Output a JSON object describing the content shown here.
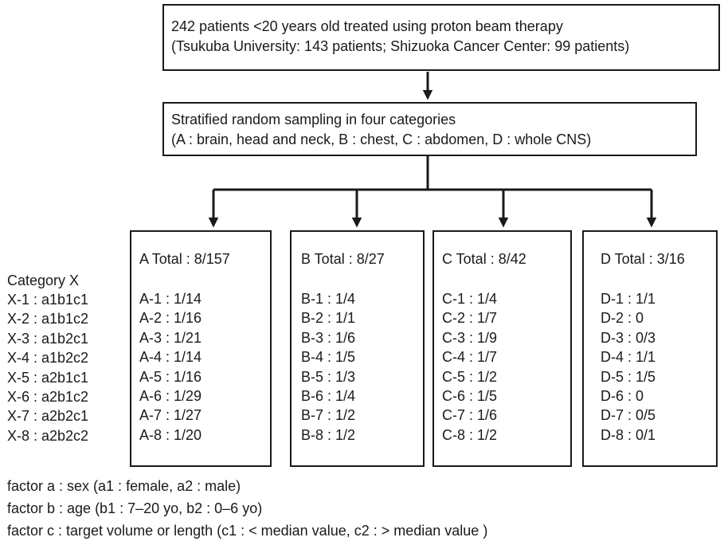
{
  "top_box": {
    "line1": "242 patients <20 years old treated using proton beam therapy",
    "line2": "(Tsukuba University: 143 patients; Shizuoka Cancer Center: 99 patients)"
  },
  "mid_box": {
    "line1": "Stratified random sampling in four categories",
    "line2": "(A : brain, head and neck, B : chest, C : abdomen, D : whole CNS)"
  },
  "legend": {
    "title": "Category X",
    "rows": [
      "X-1 : a1b1c1",
      "X-2 : a1b1c2",
      "X-3 : a1b2c1",
      "X-4 : a1b2c2",
      "X-5 : a2b1c1",
      "X-6 : a2b1c2",
      "X-7 : a2b2c1",
      "X-8 : a2b2c2"
    ]
  },
  "categories": [
    {
      "title": "A Total : 8/157",
      "rows": [
        "A-1 : 1/14",
        "A-2 : 1/16",
        "A-3 : 1/21",
        "A-4 : 1/14",
        "A-5 : 1/16",
        "A-6 : 1/29",
        "A-7 : 1/27",
        "A-8 : 1/20"
      ]
    },
    {
      "title": "B Total : 8/27",
      "rows": [
        "B-1 : 1/4",
        "B-2 : 1/1",
        "B-3 : 1/6",
        "B-4 : 1/5",
        "B-5 : 1/3",
        "B-6 : 1/4",
        "B-7 : 1/2",
        "B-8 : 1/2"
      ]
    },
    {
      "title": "C Total : 8/42",
      "rows": [
        "C-1 : 1/4",
        "C-2 : 1/7",
        "C-3 : 1/9",
        "C-4 : 1/7",
        "C-5 : 1/2",
        "C-6 : 1/5",
        "C-7 : 1/6",
        "C-8 : 1/2"
      ]
    },
    {
      "title": "D Total : 3/16",
      "rows": [
        "D-1 : 1/1",
        "D-2 : 0",
        "D-3 : 0/3",
        "D-4 : 1/1",
        "D-5 : 1/5",
        "D-6 : 0",
        "D-7 : 0/5",
        "D-8 : 0/1"
      ]
    }
  ],
  "footnotes": [
    "factor a : sex (a1 : female, a2 : male)",
    "factor b : age (b1 : 7–20 yo, b2 : 0–6 yo)",
    "factor c : target volume or length (c1 : < median value, c2 : > median value )"
  ]
}
